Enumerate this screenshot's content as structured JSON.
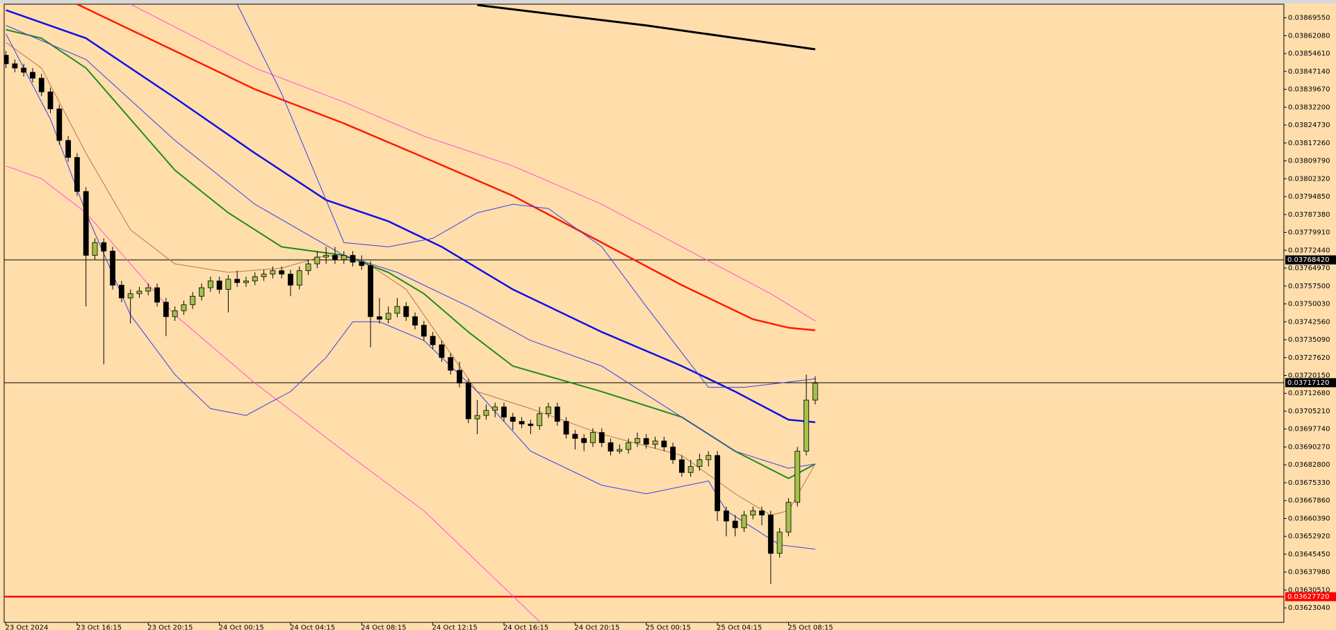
{
  "chart_data": {
    "type": "candlestick",
    "xlim": [
      -0.2,
      143.7
    ],
    "xticks": [
      {
        "value": 0,
        "label": "23 Oct 2024"
      },
      {
        "value": 8,
        "label": "23 Oct 16:15"
      },
      {
        "value": 16,
        "label": "23 Oct 20:15"
      },
      {
        "value": 24,
        "label": "24 Oct 00:15"
      },
      {
        "value": 32,
        "label": "24 Oct 04:15"
      },
      {
        "value": 40,
        "label": "24 Oct 08:15"
      },
      {
        "value": 48,
        "label": "24 Oct 12:15"
      },
      {
        "value": 56,
        "label": "24 Oct 16:15"
      },
      {
        "value": 64,
        "label": "24 Oct 20:15"
      },
      {
        "value": 72,
        "label": "25 Oct 00:15"
      },
      {
        "value": 80,
        "label": "25 Oct 04:15"
      },
      {
        "value": 88,
        "label": "25 Oct 08:15"
      }
    ],
    "ylim": [
      0.03617,
      0.0387524
    ],
    "yticks": [
      {
        "value": 0.0386955,
        "label": "0.03869550"
      },
      {
        "value": 0.0386208,
        "label": "0.03862080"
      },
      {
        "value": 0.0385461,
        "label": "0.03854610"
      },
      {
        "value": 0.0384714,
        "label": "0.03847140"
      },
      {
        "value": 0.0383967,
        "label": "0.03839670"
      },
      {
        "value": 0.038322,
        "label": "0.03832200"
      },
      {
        "value": 0.0382473,
        "label": "0.03824730"
      },
      {
        "value": 0.0381726,
        "label": "0.03817260"
      },
      {
        "value": 0.0380979,
        "label": "0.03809790"
      },
      {
        "value": 0.0380232,
        "label": "0.03802320"
      },
      {
        "value": 0.0379485,
        "label": "0.03794850"
      },
      {
        "value": 0.0378738,
        "label": "0.03787380"
      },
      {
        "value": 0.0377991,
        "label": "0.03779910"
      },
      {
        "value": 0.0377244,
        "label": "0.03772440"
      },
      {
        "value": 0.0376497,
        "label": "0.03764970"
      },
      {
        "value": 0.037575,
        "label": "0.03757500"
      },
      {
        "value": 0.0375003,
        "label": "0.03750030"
      },
      {
        "value": 0.0374256,
        "label": "0.03742560"
      },
      {
        "value": 0.0373509,
        "label": "0.03735090"
      },
      {
        "value": 0.0372762,
        "label": "0.03727620"
      },
      {
        "value": 0.0372015,
        "label": "0.03720150"
      },
      {
        "value": 0.0371268,
        "label": "0.03712680"
      },
      {
        "value": 0.0370521,
        "label": "0.03705210"
      },
      {
        "value": 0.0369774,
        "label": "0.03697740"
      },
      {
        "value": 0.0369027,
        "label": "0.03690270"
      },
      {
        "value": 0.036828,
        "label": "0.03682800"
      },
      {
        "value": 0.0367533,
        "label": "0.03675330"
      },
      {
        "value": 0.0366786,
        "label": "0.03667860"
      },
      {
        "value": 0.0366039,
        "label": "0.03660390"
      },
      {
        "value": 0.0365292,
        "label": "0.03652920"
      },
      {
        "value": 0.0364545,
        "label": "0.03645450"
      },
      {
        "value": 0.0363798,
        "label": "0.03637980"
      },
      {
        "value": 0.0363051,
        "label": "0.03630510"
      },
      {
        "value": 0.0362304,
        "label": "0.03623040"
      }
    ],
    "up_color": "#a4bf4a",
    "down_color": "#000000",
    "open": [
      0.038539,
      0.0385034,
      0.0384856,
      0.0384679,
      0.038443,
      0.038386,
      0.0383149,
      0.0381833,
      0.0381122,
      0.0379699,
      0.0377031,
      0.0377565,
      0.0377209,
      0.0375786,
      0.0375252,
      0.037543,
      0.0375537,
      0.0375679,
      0.0375075,
      0.037447,
      0.0374719,
      0.0374968,
      0.0375324,
      0.0375679,
      0.0375964,
      0.0375608,
      0.0376035,
      0.0375893,
      0.0375964,
      0.0376142,
      0.0376248,
      0.0376391,
      0.0376248,
      0.0375786,
      0.0376391,
      0.0376675,
      0.037696,
      0.0377031,
      0.0376853,
      0.0377031,
      0.0376746,
      0.0376604,
      0.037447,
      0.0374363,
      0.0374612,
      0.0374897,
      0.037447,
      0.0374114,
      0.0373652,
      0.0373296,
      0.0372763,
      0.0372229,
      0.0371695,
      0.0370202,
      0.0370344,
      0.0370557,
      0.03707,
      0.0370273,
      0.0370095,
      0.0369988,
      0.0369917,
      0.0370415,
      0.03707,
      0.0370095,
      0.0369561,
      0.0369383,
      0.0369206,
      0.0369632,
      0.0369206,
      0.036885,
      0.0368921,
      0.0369206,
      0.0369383,
      0.0369134,
      0.0369277,
      0.0369028,
      0.0368494,
      0.0367961,
      0.036821,
      0.0368494,
      0.0368672,
      0.036636,
      0.0365933,
      0.0365649,
      0.0366182,
      0.036636,
      0.0366182,
      0.0364581,
      0.0365471,
      0.0366716,
      0.036885,
      0.0370984
    ],
    "high": [
      0.0385568,
      0.0385212,
      0.0385034,
      0.0384856,
      0.0384607,
      0.0384038,
      0.0383327,
      0.0382011,
      0.0381299,
      0.0379877,
      0.0377742,
      0.0377742,
      0.0377387,
      0.0375964,
      0.0375608,
      0.0375715,
      0.0375857,
      0.0375857,
      0.0375252,
      0.0374897,
      0.0375146,
      0.0375501,
      0.0375857,
      0.0376142,
      0.0376142,
      0.0376213,
      0.0376391,
      0.0376142,
      0.037632,
      0.0376426,
      0.0376568,
      0.0376568,
      0.0376426,
      0.0376568,
      0.0376853,
      0.0377209,
      0.0377387,
      0.0377387,
      0.0377209,
      0.0377209,
      0.0377031,
      0.0376782,
      0.0375252,
      0.0374897,
      0.0375252,
      0.0375075,
      0.0374648,
      0.0374292,
      0.037383,
      0.0373474,
      0.037294,
      0.0372585,
      0.0371873,
      0.0370984,
      0.0370806,
      0.0370877,
      0.0370877,
      0.0370451,
      0.0370273,
      0.0370166,
      0.03707,
      0.0370877,
      0.0370877,
      0.0370273,
      0.0369739,
      0.0369561,
      0.036981,
      0.036981,
      0.0369383,
      0.0369134,
      0.0369383,
      0.0369632,
      0.0369561,
      0.0369455,
      0.0369455,
      0.0369206,
      0.0368672,
      0.0368494,
      0.0368743,
      0.036885,
      0.036885,
      0.0366538,
      0.0366182,
      0.036636,
      0.0366538,
      0.0366538,
      0.036636,
      0.0365649,
      0.0366894,
      0.0369028,
      0.0372051,
      0.037198
    ],
    "low": [
      0.0384856,
      0.0384679,
      0.0384501,
      0.0384252,
      0.0383683,
      0.0382971,
      0.0381655,
      0.0380944,
      0.0379521,
      0.0374897,
      0.0376853,
      0.0372478,
      0.0375608,
      0.0375075,
      0.0374185,
      0.0375252,
      0.0375359,
      0.0374897,
      0.0373652,
      0.0374292,
      0.0374541,
      0.037479,
      0.0375146,
      0.0375501,
      0.037543,
      0.0374648,
      0.0375715,
      0.0375715,
      0.0375786,
      0.0375964,
      0.0376071,
      0.0376071,
      0.0375324,
      0.0375608,
      0.0376213,
      0.0376497,
      0.0376675,
      0.0376675,
      0.0376675,
      0.0376568,
      0.0376426,
      0.0373189,
      0.0374185,
      0.0374185,
      0.0374434,
      0.0374292,
      0.0373936,
      0.0373474,
      0.0373118,
      0.0372585,
      0.0372051,
      0.0371518,
      0.0370024,
      0.0369561,
      0.0370166,
      0.0370273,
      0.0370095,
      0.0369739,
      0.036981,
      0.0369561,
      0.0369739,
      0.0370237,
      0.0369917,
      0.0369383,
      0.0368921,
      0.036885,
      0.0369028,
      0.0369028,
      0.0368672,
      0.0368743,
      0.0368743,
      0.0369028,
      0.0368957,
      0.0368957,
      0.036885,
      0.0368316,
      0.0367783,
      0.0367783,
      0.0368032,
      0.036821,
      0.0365933,
      0.0365293,
      0.0365293,
      0.0365471,
      0.0366004,
      0.0365755,
      0.0363301,
      0.0364404,
      0.0365293,
      0.0366538,
      0.0368672,
      0.0370806
    ],
    "close": [
      0.0385034,
      0.0384856,
      0.0384679,
      0.038443,
      0.038386,
      0.0383149,
      0.0381833,
      0.0381122,
      0.0379699,
      0.0377031,
      0.0377565,
      0.0377209,
      0.0375786,
      0.0375252,
      0.037543,
      0.0375537,
      0.0375679,
      0.0375075,
      0.037447,
      0.0374719,
      0.0374968,
      0.0375324,
      0.0375679,
      0.0375964,
      0.0375608,
      0.0376035,
      0.0375893,
      0.0375964,
      0.0376142,
      0.0376248,
      0.0376391,
      0.0376248,
      0.0375786,
      0.0376391,
      0.0376675,
      0.037696,
      0.0377031,
      0.0376853,
      0.0377031,
      0.0376746,
      0.0376604,
      0.037447,
      0.0374363,
      0.0374612,
      0.0374897,
      0.037447,
      0.0374114,
      0.0373652,
      0.0373296,
      0.0372763,
      0.0372229,
      0.0371695,
      0.0370202,
      0.0370344,
      0.0370557,
      0.03707,
      0.0370273,
      0.0370095,
      0.0369988,
      0.0369917,
      0.0370415,
      0.03707,
      0.0370095,
      0.0369561,
      0.0369383,
      0.0369206,
      0.0369632,
      0.0369206,
      0.036885,
      0.0368921,
      0.0369206,
      0.0369383,
      0.0369134,
      0.0369277,
      0.0369028,
      0.0368494,
      0.0367961,
      0.036821,
      0.0368494,
      0.0368672,
      0.036636,
      0.0365933,
      0.0365649,
      0.0366182,
      0.036636,
      0.0366182,
      0.0364581,
      0.0365471,
      0.0366716,
      0.036885,
      0.0370984,
      0.0371695
    ],
    "series": [
      {
        "color": "#000000",
        "width": 3,
        "x": [
          53,
          72,
          91
        ],
        "values": [
          0.0387489,
          0.0386635,
          0.0385639
        ]
      },
      {
        "color": "#ff1a00",
        "width": 2.5,
        "x": [
          8,
          19,
          28,
          38,
          47,
          57,
          67,
          76,
          84,
          88,
          91
        ],
        "values": [
          0.0387524,
          0.0385568,
          0.0383967,
          0.0382544,
          0.0381122,
          0.0379521,
          0.0377565,
          0.0375786,
          0.0374363,
          0.0374008,
          0.0373901
        ]
      },
      {
        "color": "#ff4fd8",
        "width": 1,
        "x": [
          14,
          28,
          38,
          47,
          57,
          67,
          76,
          86,
          91
        ],
        "values": [
          0.0387524,
          0.0384856,
          0.0383434,
          0.0382011,
          0.0380766,
          0.0379165,
          0.0377387,
          0.037543,
          0.0374292
        ]
      },
      {
        "color": "#ff4fd8",
        "width": 1,
        "x": [
          0,
          4,
          9,
          14,
          19,
          28,
          38,
          47,
          57,
          60
        ],
        "values": [
          0.0380766,
          0.0380232,
          0.0378809,
          0.0376675,
          0.0374541,
          0.0371695,
          0.036885,
          0.036636,
          0.0362803,
          0.0361736
        ]
      },
      {
        "color": "#1010e0",
        "width": 2.5,
        "x": [
          0,
          9,
          19,
          28,
          36,
          43,
          49,
          57,
          67,
          76,
          82,
          88,
          91
        ],
        "values": [
          0.0387275,
          0.0386101,
          0.0383611,
          0.0381299,
          0.0379343,
          0.0378454,
          0.0377387,
          0.0375608,
          0.037383,
          0.0372407,
          0.037134,
          0.0370166,
          0.0370059
        ]
      },
      {
        "color": "#1f8a1f",
        "width": 2,
        "x": [
          0,
          4,
          9,
          14,
          19,
          25,
          31,
          38,
          43,
          47,
          52,
          57,
          67,
          76,
          82,
          88,
          91
        ],
        "values": [
          0.0386457,
          0.0386101,
          0.0384856,
          0.0382722,
          0.0380588,
          0.0378809,
          0.0377387,
          0.0377031,
          0.037632,
          0.037543,
          0.037383,
          0.0372407,
          0.037134,
          0.0370273,
          0.036885,
          0.0367712,
          0.0368316
        ]
      },
      {
        "color": "#b07a50",
        "width": 1,
        "x": [
          0,
          4,
          9,
          14,
          19,
          25,
          31,
          36,
          40,
          45,
          49,
          53,
          59,
          67,
          76,
          82,
          86,
          88,
          91
        ],
        "values": [
          0.0385923,
          0.0384856,
          0.0381299,
          0.0378098,
          0.0376675,
          0.037632,
          0.0376497,
          0.0377031,
          0.0376853,
          0.0375608,
          0.0373474,
          0.037134,
          0.0370628,
          0.0369561,
          0.0368672,
          0.0367071,
          0.0366182,
          0.036636,
          0.0368316
        ]
      },
      {
        "color": "#3b3bf0",
        "width": 1,
        "x": [
          26,
          31,
          35,
          38,
          43,
          48,
          53,
          57,
          61,
          67,
          72,
          79,
          83,
          91
        ],
        "values": [
          0.0387524,
          0.0383789,
          0.0380232,
          0.0377565,
          0.0377387,
          0.0377742,
          0.0378809,
          0.0379165,
          0.0378987,
          0.0377387,
          0.0374897,
          0.0371518,
          0.0371518,
          0.0371873
        ]
      },
      {
        "color": "#3b3bf0",
        "width": 1,
        "x": [
          0,
          9,
          19,
          28,
          38,
          44,
          52,
          59,
          67,
          76,
          82,
          88,
          91
        ],
        "values": [
          0.0386635,
          0.0385212,
          0.0381833,
          0.0379165,
          0.0377031,
          0.037632,
          0.0374897,
          0.0373474,
          0.0372407,
          0.0370273,
          0.036885,
          0.0368138,
          0.0368316
        ]
      },
      {
        "color": "#3b3bf0",
        "width": 1,
        "x": [
          0,
          5,
          9,
          14,
          19,
          23,
          27,
          32,
          36,
          39,
          42,
          47,
          53,
          59,
          67,
          72,
          79,
          81,
          84,
          87,
          91
        ],
        "values": [
          0.0386279,
          0.0382722,
          0.0378809,
          0.0374541,
          0.0372051,
          0.0370628,
          0.0370344,
          0.037134,
          0.0372763,
          0.0374257,
          0.0374257,
          0.0373474,
          0.037134,
          0.036885,
          0.0367427,
          0.0367071,
          0.0367605,
          0.036636,
          0.0365649,
          0.0364937,
          0.0364759
        ]
      }
    ],
    "hlines": [
      {
        "value": 0.0376842,
        "label": "0.03768420",
        "color": "#000000",
        "width": 1
      },
      {
        "value": 0.0371712,
        "label": "0.03717120",
        "color": "#000000",
        "width": 1
      },
      {
        "value": 0.0362772,
        "label": "0.03627720",
        "color": "#ff0000",
        "width": 2.5
      }
    ]
  }
}
